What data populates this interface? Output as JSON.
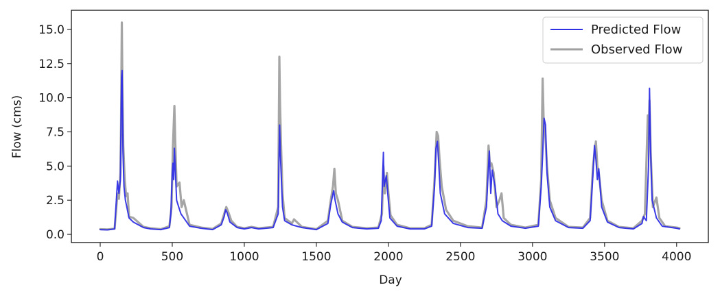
{
  "chart_data": {
    "type": "line",
    "xlabel": "Day",
    "ylabel": "Flow (cms)",
    "xlim": [
      -200,
      4220
    ],
    "ylim": [
      -0.6,
      16.4
    ],
    "xticks": [
      0,
      500,
      1000,
      1500,
      2000,
      2500,
      3000,
      3500,
      4000
    ],
    "xtick_labels": [
      "0",
      "500",
      "1000",
      "1500",
      "2000",
      "2500",
      "3000",
      "3500",
      "4000"
    ],
    "yticks": [
      0.0,
      2.5,
      5.0,
      7.5,
      10.0,
      12.5,
      15.0
    ],
    "ytick_labels": [
      "0.0",
      "2.5",
      "5.0",
      "7.5",
      "10.0",
      "12.5",
      "15.0"
    ],
    "grid": false,
    "legend_position": "top-right",
    "series": [
      {
        "name": "Predicted Flow",
        "color": "#2f2fe6",
        "points": [
          [
            0,
            0.35
          ],
          [
            50,
            0.33
          ],
          [
            100,
            0.4
          ],
          [
            120,
            3.9
          ],
          [
            130,
            3.0
          ],
          [
            140,
            4.0
          ],
          [
            148,
            11.5
          ],
          [
            152,
            12.0
          ],
          [
            158,
            6.0
          ],
          [
            165,
            3.5
          ],
          [
            175,
            2.5
          ],
          [
            185,
            2.0
          ],
          [
            200,
            1.2
          ],
          [
            230,
            0.9
          ],
          [
            300,
            0.5
          ],
          [
            350,
            0.4
          ],
          [
            420,
            0.35
          ],
          [
            480,
            0.5
          ],
          [
            490,
            1.5
          ],
          [
            500,
            4.5
          ],
          [
            505,
            5.2
          ],
          [
            510,
            4.0
          ],
          [
            515,
            6.3
          ],
          [
            520,
            5.0
          ],
          [
            530,
            2.5
          ],
          [
            545,
            2.0
          ],
          [
            560,
            1.5
          ],
          [
            580,
            1.2
          ],
          [
            620,
            0.6
          ],
          [
            700,
            0.45
          ],
          [
            780,
            0.35
          ],
          [
            840,
            0.7
          ],
          [
            860,
            1.3
          ],
          [
            870,
            1.8
          ],
          [
            880,
            1.6
          ],
          [
            900,
            0.9
          ],
          [
            950,
            0.5
          ],
          [
            1000,
            0.4
          ],
          [
            1050,
            0.5
          ],
          [
            1100,
            0.4
          ],
          [
            1200,
            0.5
          ],
          [
            1235,
            1.5
          ],
          [
            1240,
            5.0
          ],
          [
            1245,
            8.0
          ],
          [
            1250,
            6.0
          ],
          [
            1255,
            4.6
          ],
          [
            1265,
            2.0
          ],
          [
            1280,
            1.0
          ],
          [
            1330,
            0.7
          ],
          [
            1400,
            0.5
          ],
          [
            1500,
            0.35
          ],
          [
            1580,
            0.8
          ],
          [
            1600,
            2.2
          ],
          [
            1620,
            3.2
          ],
          [
            1630,
            2.5
          ],
          [
            1650,
            1.5
          ],
          [
            1680,
            0.9
          ],
          [
            1750,
            0.5
          ],
          [
            1850,
            0.4
          ],
          [
            1930,
            0.45
          ],
          [
            1950,
            1.0
          ],
          [
            1965,
            6.0
          ],
          [
            1970,
            3.5
          ],
          [
            1985,
            4.3
          ],
          [
            1995,
            3.0
          ],
          [
            2010,
            1.2
          ],
          [
            2060,
            0.6
          ],
          [
            2150,
            0.4
          ],
          [
            2250,
            0.4
          ],
          [
            2300,
            0.6
          ],
          [
            2320,
            3.5
          ],
          [
            2330,
            6.3
          ],
          [
            2340,
            6.8
          ],
          [
            2350,
            5.0
          ],
          [
            2360,
            3.0
          ],
          [
            2390,
            1.5
          ],
          [
            2450,
            0.8
          ],
          [
            2550,
            0.5
          ],
          [
            2650,
            0.45
          ],
          [
            2680,
            2.0
          ],
          [
            2700,
            6.1
          ],
          [
            2710,
            3.0
          ],
          [
            2720,
            4.7
          ],
          [
            2740,
            3.5
          ],
          [
            2760,
            1.5
          ],
          [
            2790,
            1.0
          ],
          [
            2850,
            0.6
          ],
          [
            2950,
            0.45
          ],
          [
            3040,
            0.6
          ],
          [
            3060,
            3.5
          ],
          [
            3070,
            5.8
          ],
          [
            3080,
            8.5
          ],
          [
            3090,
            8.0
          ],
          [
            3100,
            4.5
          ],
          [
            3120,
            2.0
          ],
          [
            3160,
            1.0
          ],
          [
            3250,
            0.5
          ],
          [
            3350,
            0.45
          ],
          [
            3400,
            1.0
          ],
          [
            3420,
            4.5
          ],
          [
            3430,
            6.5
          ],
          [
            3440,
            5.5
          ],
          [
            3450,
            4.0
          ],
          [
            3460,
            4.8
          ],
          [
            3480,
            2.0
          ],
          [
            3520,
            0.9
          ],
          [
            3600,
            0.5
          ],
          [
            3700,
            0.4
          ],
          [
            3760,
            0.8
          ],
          [
            3770,
            1.3
          ],
          [
            3790,
            1.0
          ],
          [
            3805,
            5.0
          ],
          [
            3812,
            10.7
          ],
          [
            3820,
            6.0
          ],
          [
            3830,
            2.5
          ],
          [
            3860,
            1.2
          ],
          [
            3900,
            0.6
          ],
          [
            4000,
            0.45
          ],
          [
            4020,
            0.4
          ]
        ]
      },
      {
        "name": "Observed Flow",
        "color": "#a0a0a0",
        "points": [
          [
            0,
            0.38
          ],
          [
            50,
            0.36
          ],
          [
            100,
            0.42
          ],
          [
            120,
            3.0
          ],
          [
            130,
            2.6
          ],
          [
            140,
            4.5
          ],
          [
            145,
            8.0
          ],
          [
            150,
            15.5
          ],
          [
            154,
            11.0
          ],
          [
            160,
            6.5
          ],
          [
            170,
            4.0
          ],
          [
            180,
            2.8
          ],
          [
            190,
            3.0
          ],
          [
            200,
            1.3
          ],
          [
            230,
            1.2
          ],
          [
            300,
            0.55
          ],
          [
            350,
            0.45
          ],
          [
            420,
            0.38
          ],
          [
            480,
            0.6
          ],
          [
            495,
            2.0
          ],
          [
            505,
            6.5
          ],
          [
            510,
            8.0
          ],
          [
            515,
            9.4
          ],
          [
            520,
            7.0
          ],
          [
            530,
            3.5
          ],
          [
            550,
            3.8
          ],
          [
            565,
            2.0
          ],
          [
            580,
            2.5
          ],
          [
            620,
            0.7
          ],
          [
            700,
            0.5
          ],
          [
            780,
            0.4
          ],
          [
            840,
            0.8
          ],
          [
            860,
            1.5
          ],
          [
            875,
            2.0
          ],
          [
            890,
            1.6
          ],
          [
            910,
            1.0
          ],
          [
            950,
            0.55
          ],
          [
            1000,
            0.45
          ],
          [
            1050,
            0.55
          ],
          [
            1100,
            0.45
          ],
          [
            1200,
            0.55
          ],
          [
            1235,
            2.0
          ],
          [
            1243,
            13.0
          ],
          [
            1248,
            9.5
          ],
          [
            1255,
            6.5
          ],
          [
            1265,
            3.0
          ],
          [
            1280,
            1.2
          ],
          [
            1330,
            0.8
          ],
          [
            1345,
            1.1
          ],
          [
            1400,
            0.55
          ],
          [
            1500,
            0.38
          ],
          [
            1580,
            1.0
          ],
          [
            1600,
            2.5
          ],
          [
            1615,
            3.5
          ],
          [
            1625,
            4.8
          ],
          [
            1635,
            3.0
          ],
          [
            1650,
            2.5
          ],
          [
            1680,
            1.0
          ],
          [
            1750,
            0.55
          ],
          [
            1850,
            0.45
          ],
          [
            1930,
            0.5
          ],
          [
            1955,
            1.5
          ],
          [
            1965,
            5.0
          ],
          [
            1975,
            3.0
          ],
          [
            1990,
            4.5
          ],
          [
            2000,
            3.0
          ],
          [
            2015,
            1.4
          ],
          [
            2060,
            0.7
          ],
          [
            2150,
            0.45
          ],
          [
            2250,
            0.45
          ],
          [
            2300,
            0.7
          ],
          [
            2320,
            4.0
          ],
          [
            2335,
            7.5
          ],
          [
            2345,
            7.2
          ],
          [
            2355,
            5.5
          ],
          [
            2370,
            3.5
          ],
          [
            2400,
            1.8
          ],
          [
            2450,
            1.0
          ],
          [
            2550,
            0.6
          ],
          [
            2650,
            0.5
          ],
          [
            2680,
            2.5
          ],
          [
            2695,
            6.5
          ],
          [
            2705,
            5.0
          ],
          [
            2715,
            5.2
          ],
          [
            2730,
            4.5
          ],
          [
            2750,
            2.0
          ],
          [
            2770,
            2.5
          ],
          [
            2785,
            3.0
          ],
          [
            2800,
            1.2
          ],
          [
            2850,
            0.7
          ],
          [
            2950,
            0.5
          ],
          [
            3040,
            0.7
          ],
          [
            3060,
            4.0
          ],
          [
            3070,
            11.4
          ],
          [
            3078,
            8.0
          ],
          [
            3088,
            7.5
          ],
          [
            3100,
            5.0
          ],
          [
            3120,
            2.5
          ],
          [
            3160,
            1.2
          ],
          [
            3250,
            0.55
          ],
          [
            3350,
            0.5
          ],
          [
            3400,
            1.2
          ],
          [
            3420,
            5.0
          ],
          [
            3430,
            6.0
          ],
          [
            3440,
            6.8
          ],
          [
            3450,
            5.0
          ],
          [
            3460,
            4.5
          ],
          [
            3480,
            2.5
          ],
          [
            3520,
            1.0
          ],
          [
            3600,
            0.55
          ],
          [
            3700,
            0.45
          ],
          [
            3760,
            1.0
          ],
          [
            3780,
            1.5
          ],
          [
            3800,
            8.7
          ],
          [
            3805,
            7.0
          ],
          [
            3812,
            9.8
          ],
          [
            3820,
            6.0
          ],
          [
            3835,
            2.0
          ],
          [
            3860,
            2.7
          ],
          [
            3880,
            1.2
          ],
          [
            3920,
            0.6
          ],
          [
            4000,
            0.5
          ],
          [
            4020,
            0.45
          ]
        ]
      }
    ]
  }
}
